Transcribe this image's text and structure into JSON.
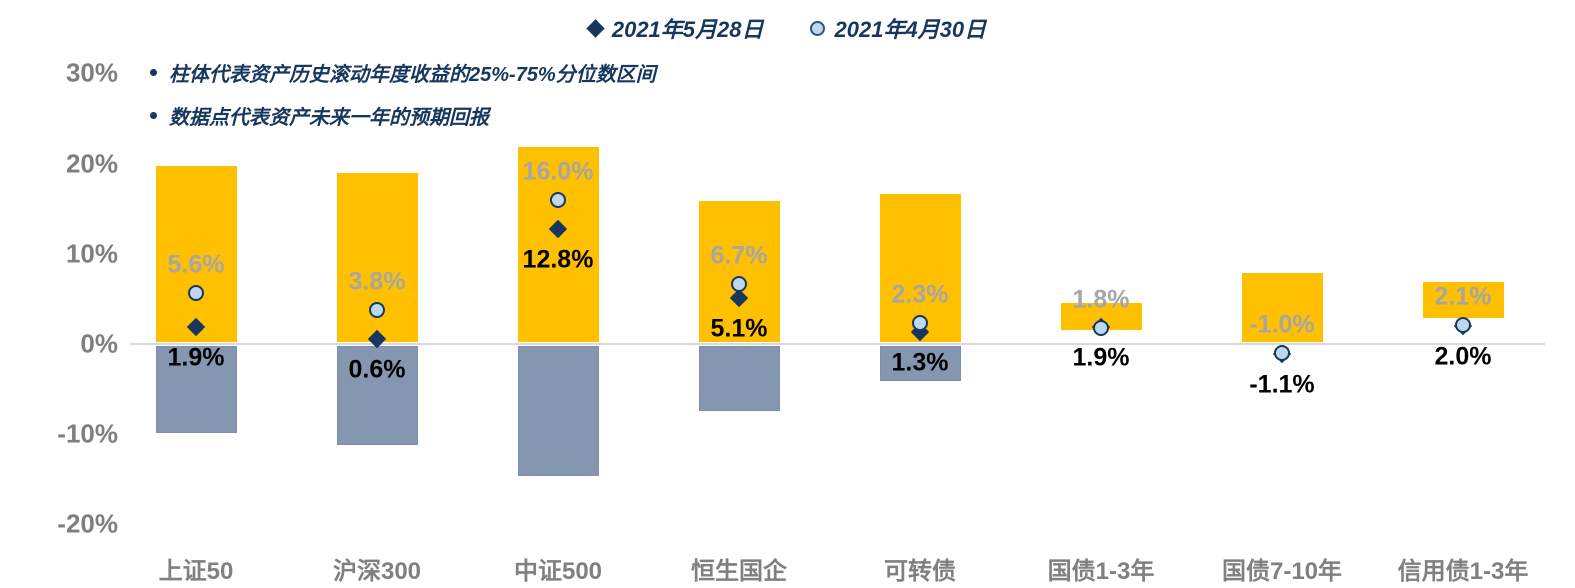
{
  "legend": {
    "items": [
      {
        "label": "2021年5月28日",
        "marker": "diamond-icon"
      },
      {
        "label": "2021年4月30日",
        "marker": "circle-icon"
      }
    ]
  },
  "annotations": {
    "line1": "柱体代表资产历史滚动年度收益的25%-75%分位数区间",
    "line2": "数据点代表资产未来一年的预期回报"
  },
  "chart_data": {
    "type": "bar",
    "subtype": "floating-range-bars-with-point-markers",
    "title": "",
    "xlabel": "",
    "ylabel": "",
    "categories": [
      "上证50",
      "沪深300",
      "中证500",
      "恒生国企",
      "可转债",
      "国债1-3年",
      "国债7-10年",
      "信用债1-3年"
    ],
    "range_series": {
      "name": "历史滚动年度收益25%-75%分位数区间",
      "high": [
        19.7,
        19.0,
        21.8,
        15.8,
        16.6,
        4.5,
        7.9,
        6.9
      ],
      "low": [
        -9.9,
        -11.2,
        -14.6,
        -7.4,
        -4.1,
        1.6,
        0.0,
        2.9
      ]
    },
    "series": [
      {
        "name": "2021年5月28日",
        "marker": "diamond",
        "values": [
          1.9,
          0.6,
          12.8,
          5.1,
          1.3,
          1.9,
          -1.1,
          2.0
        ],
        "labels": [
          "1.9%",
          "0.6%",
          "12.8%",
          "5.1%",
          "1.3%",
          "1.9%",
          "-1.1%",
          "2.0%"
        ],
        "label_color": "#000000"
      },
      {
        "name": "2021年4月30日",
        "marker": "circle",
        "values": [
          5.6,
          3.8,
          16.0,
          6.7,
          2.3,
          1.8,
          -1.0,
          2.1
        ],
        "labels": [
          "5.6%",
          "3.8%",
          "16.0%",
          "6.7%",
          "2.3%",
          "1.8%",
          "-1.0%",
          "2.1%"
        ],
        "label_color": "#A6A6A6"
      }
    ],
    "yticks": [
      {
        "label": "30%",
        "value": 30
      },
      {
        "label": "20%",
        "value": 20
      },
      {
        "label": "10%",
        "value": 10
      },
      {
        "label": "0%",
        "value": 0
      },
      {
        "label": "-10%",
        "value": -10
      },
      {
        "label": "-20%",
        "value": -20
      }
    ],
    "ylim": [
      -20,
      30
    ],
    "grid": "zero-line-only",
    "legend_position": "top-center",
    "colors": {
      "bar_positive": "#FFC000",
      "bar_negative": "#8496B0",
      "diamond": "#17375E",
      "circle_fill": "#BDD7EE",
      "circle_border": "#17375E",
      "axis_text": "#7F7F7F",
      "category_text": "#808080",
      "gridline": "#D9D9D9",
      "legend_text": "#17375E",
      "annotation_text": "#17375E"
    }
  }
}
